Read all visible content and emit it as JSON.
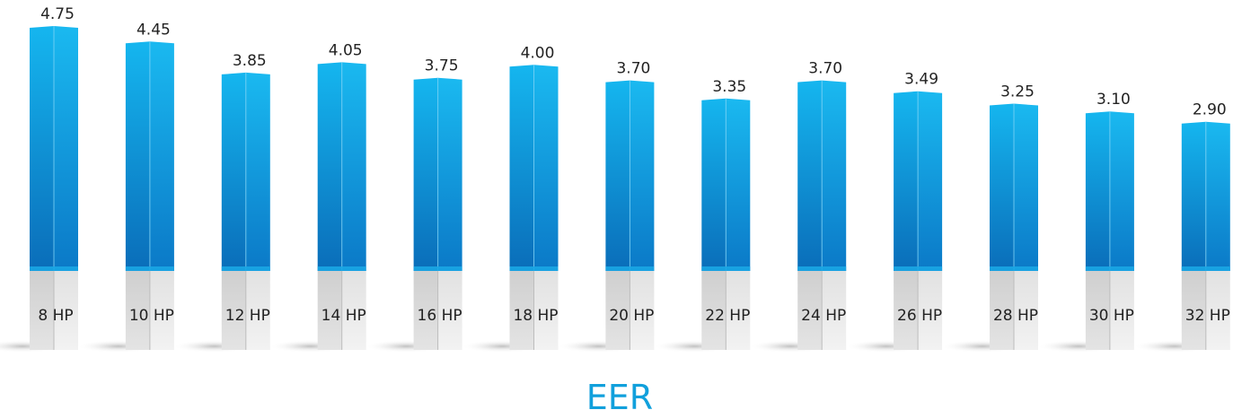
{
  "chart_data": {
    "type": "bar",
    "title": "EER",
    "xlabel": "",
    "ylabel": "",
    "categories": [
      "8 HP",
      "10 HP",
      "12 HP",
      "14 HP",
      "16 HP",
      "18 HP",
      "20 HP",
      "22 HP",
      "24 HP",
      "26 HP",
      "28 HP",
      "30 HP",
      "32 HP"
    ],
    "values": [
      4.75,
      4.45,
      3.85,
      4.05,
      3.75,
      4.0,
      3.7,
      3.35,
      3.7,
      3.49,
      3.25,
      3.1,
      2.9
    ],
    "value_labels": [
      "4.75",
      "4.45",
      "3.85",
      "4.05",
      "3.75",
      "4.00",
      "3.70",
      "3.35",
      "3.70",
      "3.49",
      "3.25",
      "3.10",
      "2.90"
    ],
    "grid": false,
    "legend": "none",
    "colors": {
      "bar_top": "#12b2ec",
      "bar_bottom": "#0a72bf",
      "pedestal": "#d9d9d9",
      "title": "#11a0dc",
      "labels": "#222222"
    }
  }
}
